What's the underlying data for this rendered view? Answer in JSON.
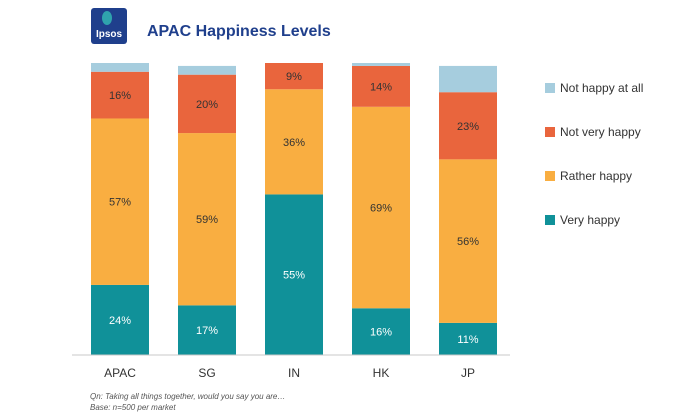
{
  "header": {
    "logo_text": "Ipsos",
    "title": "APAC Happiness Levels"
  },
  "footnotes": {
    "question": "Qn: Taking all things together, would you say you are…",
    "base": "Base: n=500 per market"
  },
  "chart_data": {
    "type": "bar",
    "stacked": true,
    "title": "APAC Happiness Levels",
    "categories": [
      "APAC",
      "SG",
      "IN",
      "HK",
      "JP"
    ],
    "ylim": [
      0,
      100
    ],
    "grid": false,
    "legend_position": "right",
    "series": [
      {
        "name": "Very happy",
        "values": [
          24,
          17,
          55,
          16,
          11
        ],
        "color": "#109199",
        "label_color": "#ffffff"
      },
      {
        "name": "Rather happy",
        "values": [
          57,
          59,
          36,
          69,
          56
        ],
        "color": "#f9ae41",
        "label_color": "#333333"
      },
      {
        "name": "Not very happy",
        "values": [
          16,
          20,
          9,
          14,
          23
        ],
        "color": "#e9653d",
        "label_color": "#333333"
      },
      {
        "name": "Not happy at all",
        "values": [
          3,
          3,
          0,
          1,
          9
        ],
        "color": "#a6cdde",
        "label_color": "#333333"
      }
    ],
    "data_labels": [
      [
        "24%",
        "17%",
        "55%",
        "16%",
        "11%"
      ],
      [
        "57%",
        "59%",
        "36%",
        "69%",
        "56%"
      ],
      [
        "16%",
        "20%",
        "9%",
        "14%",
        "23%"
      ],
      [
        "",
        "",
        "",
        "",
        ""
      ]
    ],
    "legend_order": [
      "Not happy at all",
      "Not very happy",
      "Rather happy",
      "Very happy"
    ]
  }
}
